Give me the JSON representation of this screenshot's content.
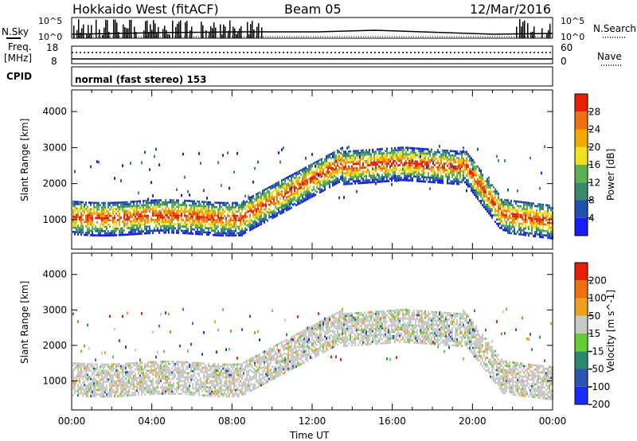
{
  "header": {
    "title": "Hokkaido West (fitACF)",
    "beam": "Beam 05",
    "date": "12/Mar/2016"
  },
  "status": {
    "nsky_label": "N.Sky",
    "nsky_ticks": [
      "10^5",
      "10^0"
    ],
    "nsearch_label": "N.Search",
    "freq_label_line1": "Freq.",
    "freq_label_line2": "[MHz]",
    "freq_ticks": [
      "18",
      "8"
    ],
    "nave_label": "Nave",
    "nave_ticks": [
      "60",
      "0"
    ],
    "cpid_label": "CPID",
    "cpid_text": "normal (fast stereo) 153"
  },
  "chart_data": [
    {
      "type": "heatmap",
      "title": "",
      "xlabel": "",
      "ylabel": "Slant Range [km]",
      "x_ticks": [
        "00:00",
        "04:00",
        "08:00",
        "12:00",
        "16:00",
        "20:00",
        "00:00"
      ],
      "xlim_hours": [
        0,
        24
      ],
      "y_ticks": [
        1000,
        2000,
        3000,
        4000
      ],
      "ylim": [
        180,
        4600
      ],
      "colorbar_label": "Power [dB]",
      "colorbar_ticks": [
        4,
        8,
        12,
        16,
        20,
        24,
        28
      ],
      "colorbar_colors": [
        "#1a1aff",
        "#2050b0",
        "#3a8a6a",
        "#5fb050",
        "#f0e020",
        "#f5a800",
        "#f07010",
        "#e82000"
      ]
    },
    {
      "type": "heatmap",
      "title": "",
      "xlabel": "Time UT",
      "ylabel": "Slant Range [km]",
      "x_ticks": [
        "00:00",
        "04:00",
        "08:00",
        "12:00",
        "16:00",
        "20:00",
        "00:00"
      ],
      "xlim_hours": [
        0,
        24
      ],
      "y_ticks": [
        1000,
        2000,
        3000,
        4000
      ],
      "ylim": [
        180,
        4600
      ],
      "colorbar_label": "Velocity [m s^-1]",
      "colorbar_ticks": [
        200,
        100,
        50,
        15,
        -15,
        -50,
        -100,
        -200
      ],
      "colorbar_colors": [
        "#1a2aff",
        "#2a55b0",
        "#2a8a70",
        "#66cc33",
        "#c8c8c8",
        "#f0a020",
        "#f07010",
        "#e82000"
      ]
    }
  ]
}
